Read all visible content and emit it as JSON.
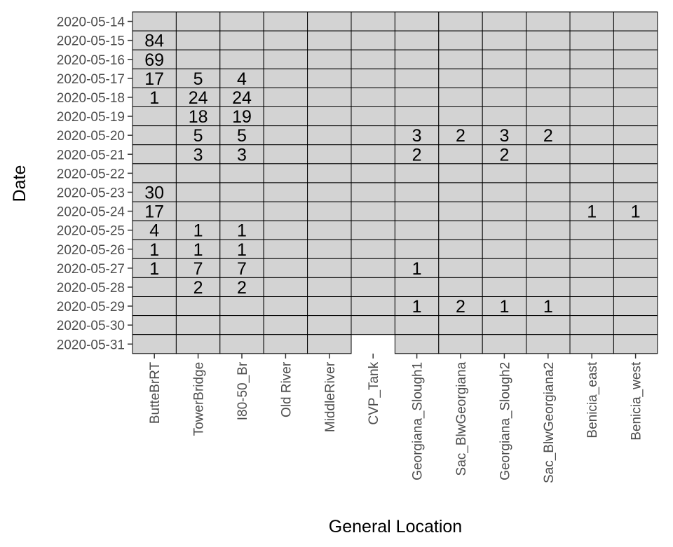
{
  "chart_data": {
    "type": "heatmap",
    "xlabel": "General Location",
    "ylabel": "Date",
    "x": [
      "ButteBrRT",
      "TowerBridge",
      "I80-50_Br",
      "Old River",
      "MiddleRiver",
      "CVP_Tank",
      "Georgiana_Slough1",
      "Sac_BlwGeorgiana",
      "Georgiana_Slough2",
      "Sac_BlwGeorgiana2",
      "Benicia_east",
      "Benicia_west"
    ],
    "y": [
      "2020-05-14",
      "2020-05-15",
      "2020-05-16",
      "2020-05-17",
      "2020-05-18",
      "2020-05-19",
      "2020-05-20",
      "2020-05-21",
      "2020-05-22",
      "2020-05-23",
      "2020-05-24",
      "2020-05-25",
      "2020-05-26",
      "2020-05-27",
      "2020-05-28",
      "2020-05-29",
      "2020-05-30",
      "2020-05-31"
    ],
    "missing_cells": [
      [
        "CVP_Tank",
        "2020-05-31"
      ]
    ],
    "fill_color": "#d3d3d3",
    "border_color": "#000000",
    "labels": [
      {
        "x": "ButteBrRT",
        "y": "2020-05-15",
        "value": 84
      },
      {
        "x": "ButteBrRT",
        "y": "2020-05-16",
        "value": 69
      },
      {
        "x": "ButteBrRT",
        "y": "2020-05-17",
        "value": 17
      },
      {
        "x": "TowerBridge",
        "y": "2020-05-17",
        "value": 5
      },
      {
        "x": "I80-50_Br",
        "y": "2020-05-17",
        "value": 4
      },
      {
        "x": "ButteBrRT",
        "y": "2020-05-18",
        "value": 1
      },
      {
        "x": "TowerBridge",
        "y": "2020-05-18",
        "value": 24
      },
      {
        "x": "I80-50_Br",
        "y": "2020-05-18",
        "value": 24
      },
      {
        "x": "TowerBridge",
        "y": "2020-05-19",
        "value": 18
      },
      {
        "x": "I80-50_Br",
        "y": "2020-05-19",
        "value": 19
      },
      {
        "x": "TowerBridge",
        "y": "2020-05-20",
        "value": 5
      },
      {
        "x": "I80-50_Br",
        "y": "2020-05-20",
        "value": 5
      },
      {
        "x": "Georgiana_Slough1",
        "y": "2020-05-20",
        "value": 3
      },
      {
        "x": "Sac_BlwGeorgiana",
        "y": "2020-05-20",
        "value": 2
      },
      {
        "x": "Georgiana_Slough2",
        "y": "2020-05-20",
        "value": 3
      },
      {
        "x": "Sac_BlwGeorgiana2",
        "y": "2020-05-20",
        "value": 2
      },
      {
        "x": "TowerBridge",
        "y": "2020-05-21",
        "value": 3
      },
      {
        "x": "I80-50_Br",
        "y": "2020-05-21",
        "value": 3
      },
      {
        "x": "Georgiana_Slough1",
        "y": "2020-05-21",
        "value": 2
      },
      {
        "x": "Georgiana_Slough2",
        "y": "2020-05-21",
        "value": 2
      },
      {
        "x": "ButteBrRT",
        "y": "2020-05-23",
        "value": 30
      },
      {
        "x": "ButteBrRT",
        "y": "2020-05-24",
        "value": 17
      },
      {
        "x": "Benicia_east",
        "y": "2020-05-24",
        "value": 1
      },
      {
        "x": "Benicia_west",
        "y": "2020-05-24",
        "value": 1
      },
      {
        "x": "ButteBrRT",
        "y": "2020-05-25",
        "value": 4
      },
      {
        "x": "TowerBridge",
        "y": "2020-05-25",
        "value": 1
      },
      {
        "x": "I80-50_Br",
        "y": "2020-05-25",
        "value": 1
      },
      {
        "x": "ButteBrRT",
        "y": "2020-05-26",
        "value": 1
      },
      {
        "x": "TowerBridge",
        "y": "2020-05-26",
        "value": 1
      },
      {
        "x": "I80-50_Br",
        "y": "2020-05-26",
        "value": 1
      },
      {
        "x": "ButteBrRT",
        "y": "2020-05-27",
        "value": 1
      },
      {
        "x": "TowerBridge",
        "y": "2020-05-27",
        "value": 7
      },
      {
        "x": "I80-50_Br",
        "y": "2020-05-27",
        "value": 7
      },
      {
        "x": "Georgiana_Slough1",
        "y": "2020-05-27",
        "value": 1
      },
      {
        "x": "TowerBridge",
        "y": "2020-05-28",
        "value": 2
      },
      {
        "x": "I80-50_Br",
        "y": "2020-05-28",
        "value": 2
      },
      {
        "x": "Georgiana_Slough1",
        "y": "2020-05-29",
        "value": 1
      },
      {
        "x": "Sac_BlwGeorgiana",
        "y": "2020-05-29",
        "value": 2
      },
      {
        "x": "Georgiana_Slough2",
        "y": "2020-05-29",
        "value": 1
      },
      {
        "x": "Sac_BlwGeorgiana2",
        "y": "2020-05-29",
        "value": 1
      }
    ]
  }
}
